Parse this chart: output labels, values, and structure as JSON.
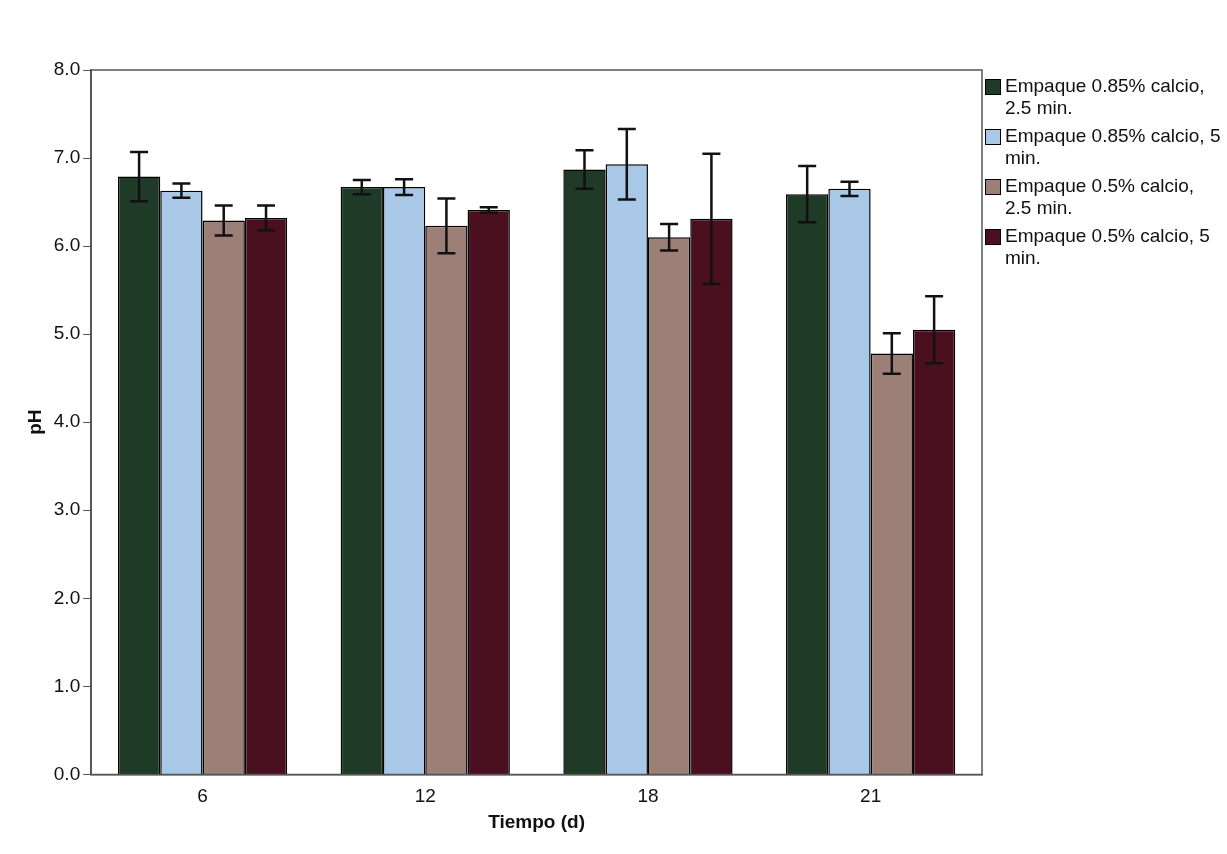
{
  "chart_data": {
    "type": "bar",
    "xlabel": "Tiempo (d)",
    "ylabel": "pH",
    "categories": [
      "6",
      "12",
      "18",
      "21"
    ],
    "series": [
      {
        "name": "Empaque 0.85% calcio, 2.5 min.",
        "color": "#1f3a26",
        "values": [
          6.79,
          6.67,
          6.87,
          6.59
        ],
        "errors": [
          0.28,
          0.08,
          0.22,
          0.32
        ]
      },
      {
        "name": "Empaque 0.85% calcio, 5 min.",
        "color": "#a9c8e8",
        "values": [
          6.63,
          6.67,
          6.93,
          6.65
        ],
        "errors": [
          0.08,
          0.09,
          0.4,
          0.08
        ]
      },
      {
        "name": "Empaque 0.5% calcio, 2.5 min.",
        "color": "#9c8078",
        "values": [
          6.29,
          6.23,
          6.1,
          4.78
        ],
        "errors": [
          0.17,
          0.31,
          0.15,
          0.23
        ]
      },
      {
        "name": "Empaque 0.5% calcio, 5 min.",
        "color": "#4a1020",
        "values": [
          6.32,
          6.41,
          6.31,
          5.05
        ],
        "errors": [
          0.14,
          0.03,
          0.74,
          0.38
        ]
      }
    ],
    "ylim": [
      0,
      8
    ],
    "yticks": [
      {
        "value": 0,
        "label": "0.0"
      },
      {
        "value": 1,
        "label": "1.0"
      },
      {
        "value": 2,
        "label": "2.0"
      },
      {
        "value": 3,
        "label": "3.0"
      },
      {
        "value": 4,
        "label": "4.0"
      },
      {
        "value": 5,
        "label": "5.0"
      },
      {
        "value": 6,
        "label": "6.0"
      },
      {
        "value": 7,
        "label": "7.0"
      },
      {
        "value": 8,
        "label": "8.0"
      }
    ],
    "grid": false,
    "legend": "right"
  }
}
